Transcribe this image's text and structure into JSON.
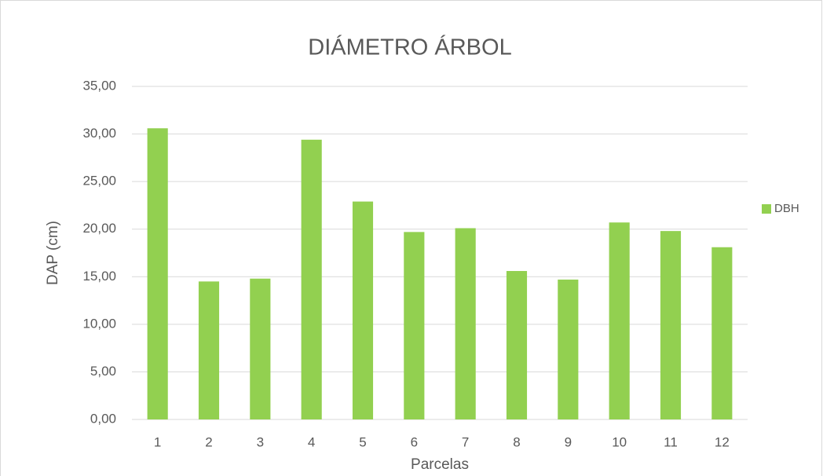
{
  "chart_data": {
    "type": "bar",
    "title": "DIÁMETRO ÁRBOL",
    "x_label": "Parcelas",
    "y_label": "DAP (cm)",
    "categories": [
      "1",
      "2",
      "3",
      "4",
      "5",
      "6",
      "7",
      "8",
      "9",
      "10",
      "11",
      "12"
    ],
    "series": [
      {
        "name": "DBH",
        "color": "#92d050",
        "values": [
          30.6,
          14.5,
          14.8,
          29.4,
          22.9,
          19.7,
          20.1,
          15.6,
          14.7,
          20.7,
          19.8,
          18.1
        ]
      }
    ],
    "ylim": [
      0,
      35
    ],
    "yticks": [
      {
        "value": 0,
        "label": "0,00"
      },
      {
        "value": 5,
        "label": "5,00"
      },
      {
        "value": 10,
        "label": "10,00"
      },
      {
        "value": 15,
        "label": "15,00"
      },
      {
        "value": 20,
        "label": "20,00"
      },
      {
        "value": 25,
        "label": "25,00"
      },
      {
        "value": 30,
        "label": "30,00"
      },
      {
        "value": 35,
        "label": "35,00"
      }
    ],
    "grid": true,
    "legend": "right"
  }
}
